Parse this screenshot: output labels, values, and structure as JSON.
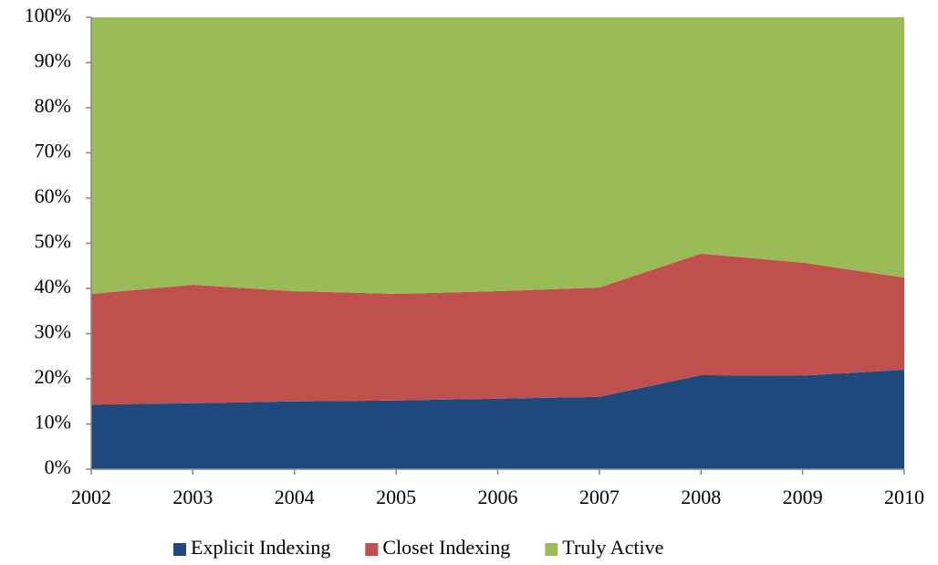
{
  "chart_data": {
    "type": "stacked-area",
    "categories": [
      "2002",
      "2003",
      "2004",
      "2005",
      "2006",
      "2007",
      "2008",
      "2009",
      "2010"
    ],
    "series": [
      {
        "name": "Explicit Indexing",
        "color": "#1f497d",
        "values": [
          14.3,
          14.6,
          15,
          15.2,
          15.6,
          16,
          20.8,
          20.7,
          22
        ]
      },
      {
        "name": "Closet Indexing",
        "color": "#c0504d",
        "values": [
          24.5,
          26.2,
          24.4,
          23.6,
          23.8,
          24.2,
          26.9,
          25,
          20.4
        ]
      },
      {
        "name": "Truly Active",
        "color": "#9bbb59",
        "values": [
          61.2,
          59.2,
          60.6,
          61.2,
          60.6,
          59.8,
          52.3,
          54.3,
          57.6
        ]
      }
    ],
    "ylim": [
      0,
      100
    ],
    "yticks": [
      {
        "value": 0,
        "label": "0%"
      },
      {
        "value": 10,
        "label": "10%"
      },
      {
        "value": 20,
        "label": "20%"
      },
      {
        "value": 30,
        "label": "30%"
      },
      {
        "value": 40,
        "label": "40%"
      },
      {
        "value": 50,
        "label": "50%"
      },
      {
        "value": 60,
        "label": "60%"
      },
      {
        "value": 70,
        "label": "70%"
      },
      {
        "value": 80,
        "label": "80%"
      },
      {
        "value": 90,
        "label": "90%"
      },
      {
        "value": 100,
        "label": "100%"
      }
    ],
    "legend": "bottom"
  }
}
